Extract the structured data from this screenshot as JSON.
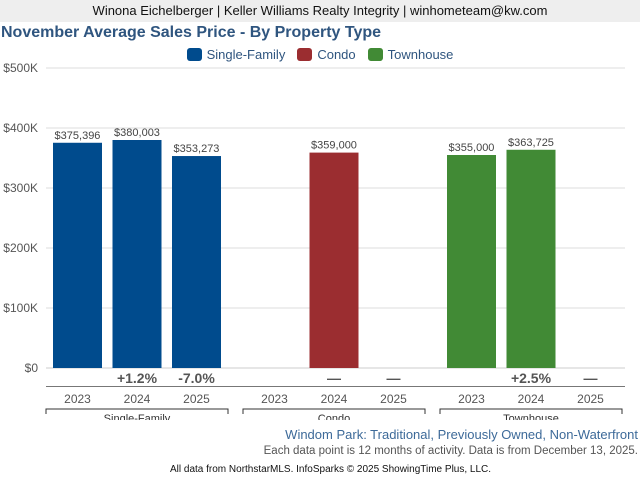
{
  "header": {
    "text": "Winona Eichelberger | Keller Williams Realty Integrity | winhometeam@kw.com"
  },
  "chart_data": {
    "type": "bar",
    "title": "November Average Sales Price - By Property Type",
    "xlabel": "",
    "ylabel": "",
    "ylim": [
      0,
      500000
    ],
    "yticks": [
      0,
      100000,
      200000,
      300000,
      400000,
      500000
    ],
    "ytick_labels": [
      "$0",
      "$100K",
      "$200K",
      "$300K",
      "$400K",
      "$500K"
    ],
    "grid": true,
    "legend_position": "top-center",
    "legend": [
      {
        "name": "Single-Family",
        "color": "#004b8d"
      },
      {
        "name": "Condo",
        "color": "#9b2d30"
      },
      {
        "name": "Townhouse",
        "color": "#418a35"
      }
    ],
    "categories": [
      "2023",
      "2024",
      "2025"
    ],
    "groups": [
      {
        "name": "Single-Family",
        "color": "#004b8d",
        "values": [
          375396,
          380003,
          353273
        ],
        "value_labels": [
          "$375,396",
          "$380,003",
          "$353,273"
        ],
        "changes": [
          "",
          "+1.2%",
          "-7.0%"
        ]
      },
      {
        "name": "Condo",
        "color": "#9b2d30",
        "values": [
          null,
          359000,
          null
        ],
        "value_labels": [
          "",
          "$359,000",
          ""
        ],
        "changes": [
          "",
          "—",
          "—"
        ]
      },
      {
        "name": "Townhouse",
        "color": "#418a35",
        "values": [
          355000,
          363725,
          null
        ],
        "value_labels": [
          "$355,000",
          "$363,725",
          ""
        ],
        "changes": [
          "",
          "+2.5%",
          "—"
        ]
      }
    ]
  },
  "footer": {
    "subtitle": "Windom Park: Traditional, Previously Owned, Non-Waterfront",
    "note": "Each data point is 12 months of activity. Data is from December 13, 2025.",
    "credit": "All data from NorthstarMLS. InfoSparks © 2025 ShowingTime Plus, LLC."
  }
}
